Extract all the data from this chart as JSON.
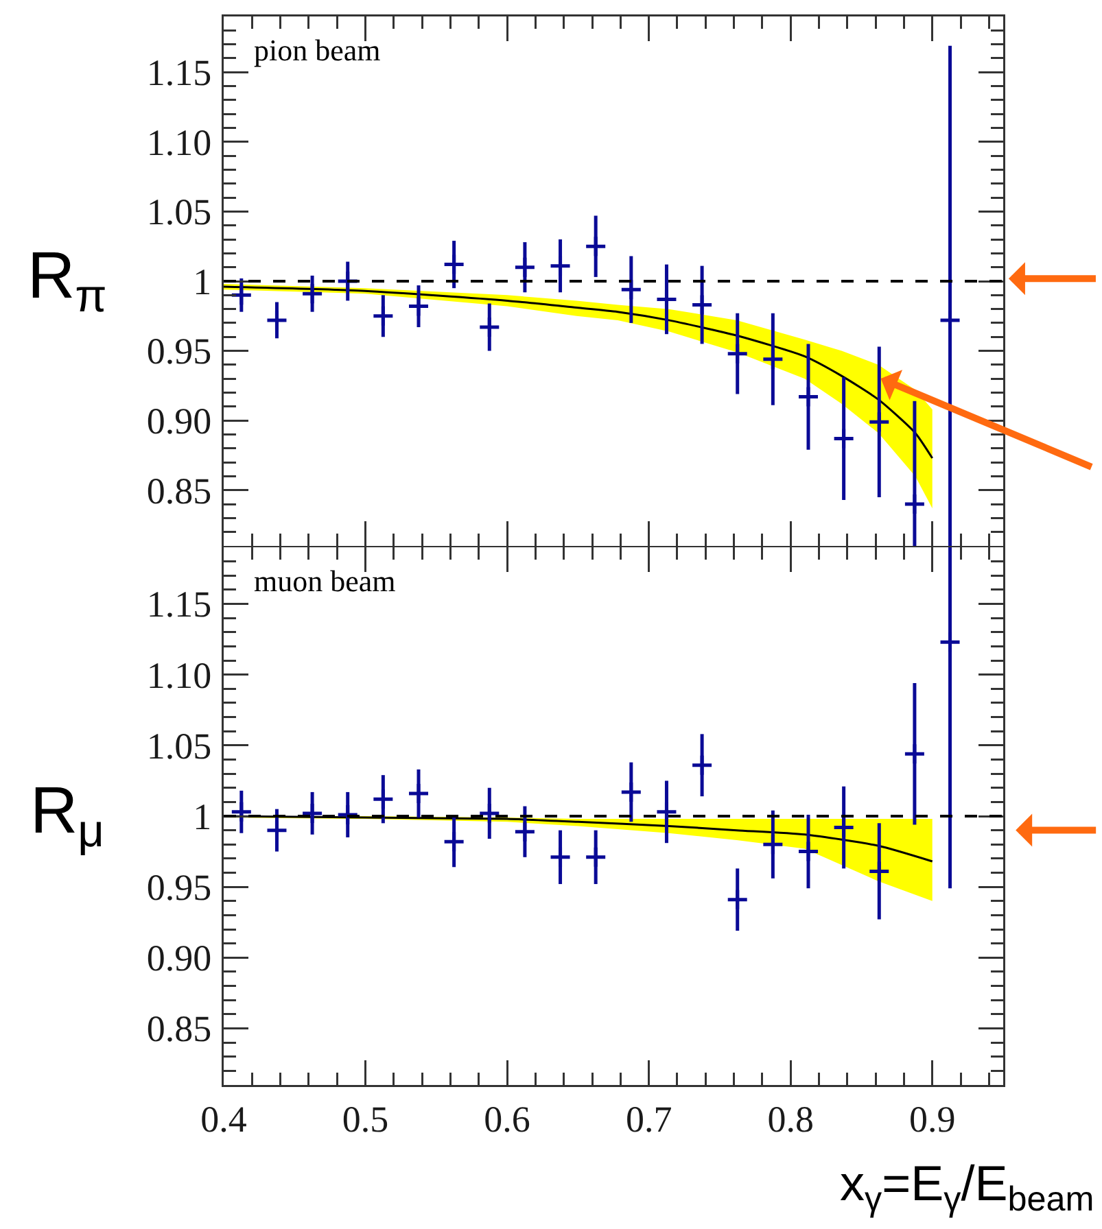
{
  "chart_data": [
    {
      "type": "scatter",
      "ylabel": "R$_{π}$",
      "annotations": [
        "pion beam"
      ],
      "tick_labels": "y",
      "grid": false,
      "x": [
        0.4125,
        0.4375,
        0.4625,
        0.4875,
        0.5125,
        0.5375,
        0.5625,
        0.5875,
        0.6125,
        0.6375,
        0.6625,
        0.6875,
        0.7125,
        0.7375,
        0.7625,
        0.7875,
        0.8125,
        0.8375,
        0.8625,
        0.8875,
        0.9125
      ],
      "xlim": [
        0.4,
        0.95
      ],
      "xticks": [
        0.4,
        0.5,
        0.6,
        0.7,
        0.8,
        0.9
      ],
      "ylim": [
        0.81,
        1.19
      ],
      "yticks": [
        {
          "value": 0.85,
          "label": "0.85"
        },
        {
          "value": 0.9,
          "label": "0.90"
        },
        {
          "value": 0.95,
          "label": "0.95"
        },
        1,
        {
          "value": 1.05,
          "label": "1.05"
        },
        {
          "value": 1.1,
          "label": "1.10"
        },
        {
          "value": 1.15,
          "label": "1.15"
        }
      ],
      "ref_lines": [
        {
          "axis": "y",
          "value": 1,
          "color": "#000000",
          "line_style": "dashed"
        }
      ],
      "series": [
        {
          "type": "line",
          "color": "#000000",
          "x": [
            0.4,
            0.5,
            0.6,
            0.649,
            0.678,
            0.714,
            0.762,
            0.81,
            0.836,
            0.862,
            0.888,
            0.9
          ],
          "values": [
            0.996,
            0.993,
            0.986,
            0.981,
            0.978,
            0.972,
            0.961,
            0.946,
            0.932,
            0.915,
            0.891,
            0.873
          ],
          "upper": [
            0.998,
            0.995,
            0.99,
            0.986,
            0.983,
            0.98,
            0.972,
            0.958,
            0.95,
            0.94,
            0.922,
            0.908
          ],
          "lower": [
            0.994,
            0.991,
            0.982,
            0.975,
            0.972,
            0.964,
            0.949,
            0.93,
            0.912,
            0.891,
            0.86,
            0.837
          ]
        },
        {
          "type": "scatter",
          "color": "#0a0a96",
          "marker": "cross",
          "values": [
            0.99,
            0.972,
            0.991,
            1.0,
            0.975,
            0.982,
            1.012,
            0.967,
            1.01,
            1.011,
            1.025,
            0.994,
            0.987,
            0.983,
            0.948,
            0.944,
            0.917,
            0.887,
            0.899,
            0.84,
            0.972
          ],
          "errors": [
            0.012,
            0.013,
            0.013,
            0.014,
            0.015,
            0.015,
            0.017,
            0.017,
            0.018,
            0.019,
            0.022,
            0.024,
            0.025,
            0.028,
            0.029,
            0.033,
            0.038,
            0.044,
            0.054,
            [
              0.81,
              0.914
            ],
            [
              0.81,
              1.169
            ]
          ]
        }
      ]
    },
    {
      "type": "scatter",
      "ylabel": "R$_{μ}$",
      "xlabel": "x$_{γ}$=E$_{γ}$/E$_{beam}$",
      "annotations": [
        "muon beam"
      ],
      "grid": false,
      "x": [
        0.4125,
        0.4375,
        0.4625,
        0.4875,
        0.5125,
        0.5375,
        0.5625,
        0.5875,
        0.6125,
        0.6375,
        0.6625,
        0.6875,
        0.7125,
        0.7375,
        0.7625,
        0.7875,
        0.8125,
        0.8375,
        0.8625,
        0.8875,
        0.9125
      ],
      "xlim": [
        0.4,
        0.95
      ],
      "xticks": [
        0.4,
        0.5,
        0.6,
        0.7,
        0.8,
        0.9
      ],
      "ylim": [
        0.81,
        1.19
      ],
      "yticks": [
        {
          "value": 0.85,
          "label": "0.85"
        },
        {
          "value": 0.9,
          "label": "0.90"
        },
        {
          "value": 0.95,
          "label": "0.95"
        },
        1,
        {
          "value": 1.05,
          "label": "1.05"
        },
        {
          "value": 1.1,
          "label": "1.10"
        },
        {
          "value": 1.15,
          "label": "1.15"
        }
      ],
      "ref_lines": [
        {
          "axis": "y",
          "value": 1,
          "color": "#000000",
          "line_style": "dashed"
        }
      ],
      "series": [
        {
          "type": "line",
          "color": "#000000",
          "x": [
            0.4,
            0.5,
            0.6,
            0.65,
            0.714,
            0.762,
            0.81,
            0.862,
            0.9
          ],
          "values": [
            1.0,
            0.999,
            0.998,
            0.996,
            0.993,
            0.99,
            0.987,
            0.979,
            0.968
          ],
          "upper": [
            1.0,
            1.0,
            0.999,
            0.998,
            0.998,
            0.998,
            0.998,
            0.998,
            0.998
          ],
          "lower": [
            0.999,
            0.998,
            0.996,
            0.993,
            0.988,
            0.983,
            0.977,
            0.954,
            0.94
          ]
        },
        {
          "type": "scatter",
          "color": "#0a0a96",
          "marker": "cross",
          "values": [
            1.003,
            0.99,
            1.002,
            1.001,
            1.012,
            1.016,
            0.982,
            1.002,
            0.989,
            0.971,
            0.971,
            1.017,
            1.003,
            1.036,
            0.941,
            0.98,
            0.975,
            0.992,
            0.961,
            1.044,
            1.123
          ],
          "errors": [
            0.015,
            0.015,
            0.015,
            0.016,
            0.017,
            0.017,
            0.018,
            0.018,
            0.018,
            0.019,
            0.019,
            0.021,
            0.022,
            0.022,
            0.022,
            0.024,
            0.026,
            0.029,
            0.034,
            0.05,
            [
              0.949,
              1.19
            ]
          ]
        }
      ]
    }
  ]
}
